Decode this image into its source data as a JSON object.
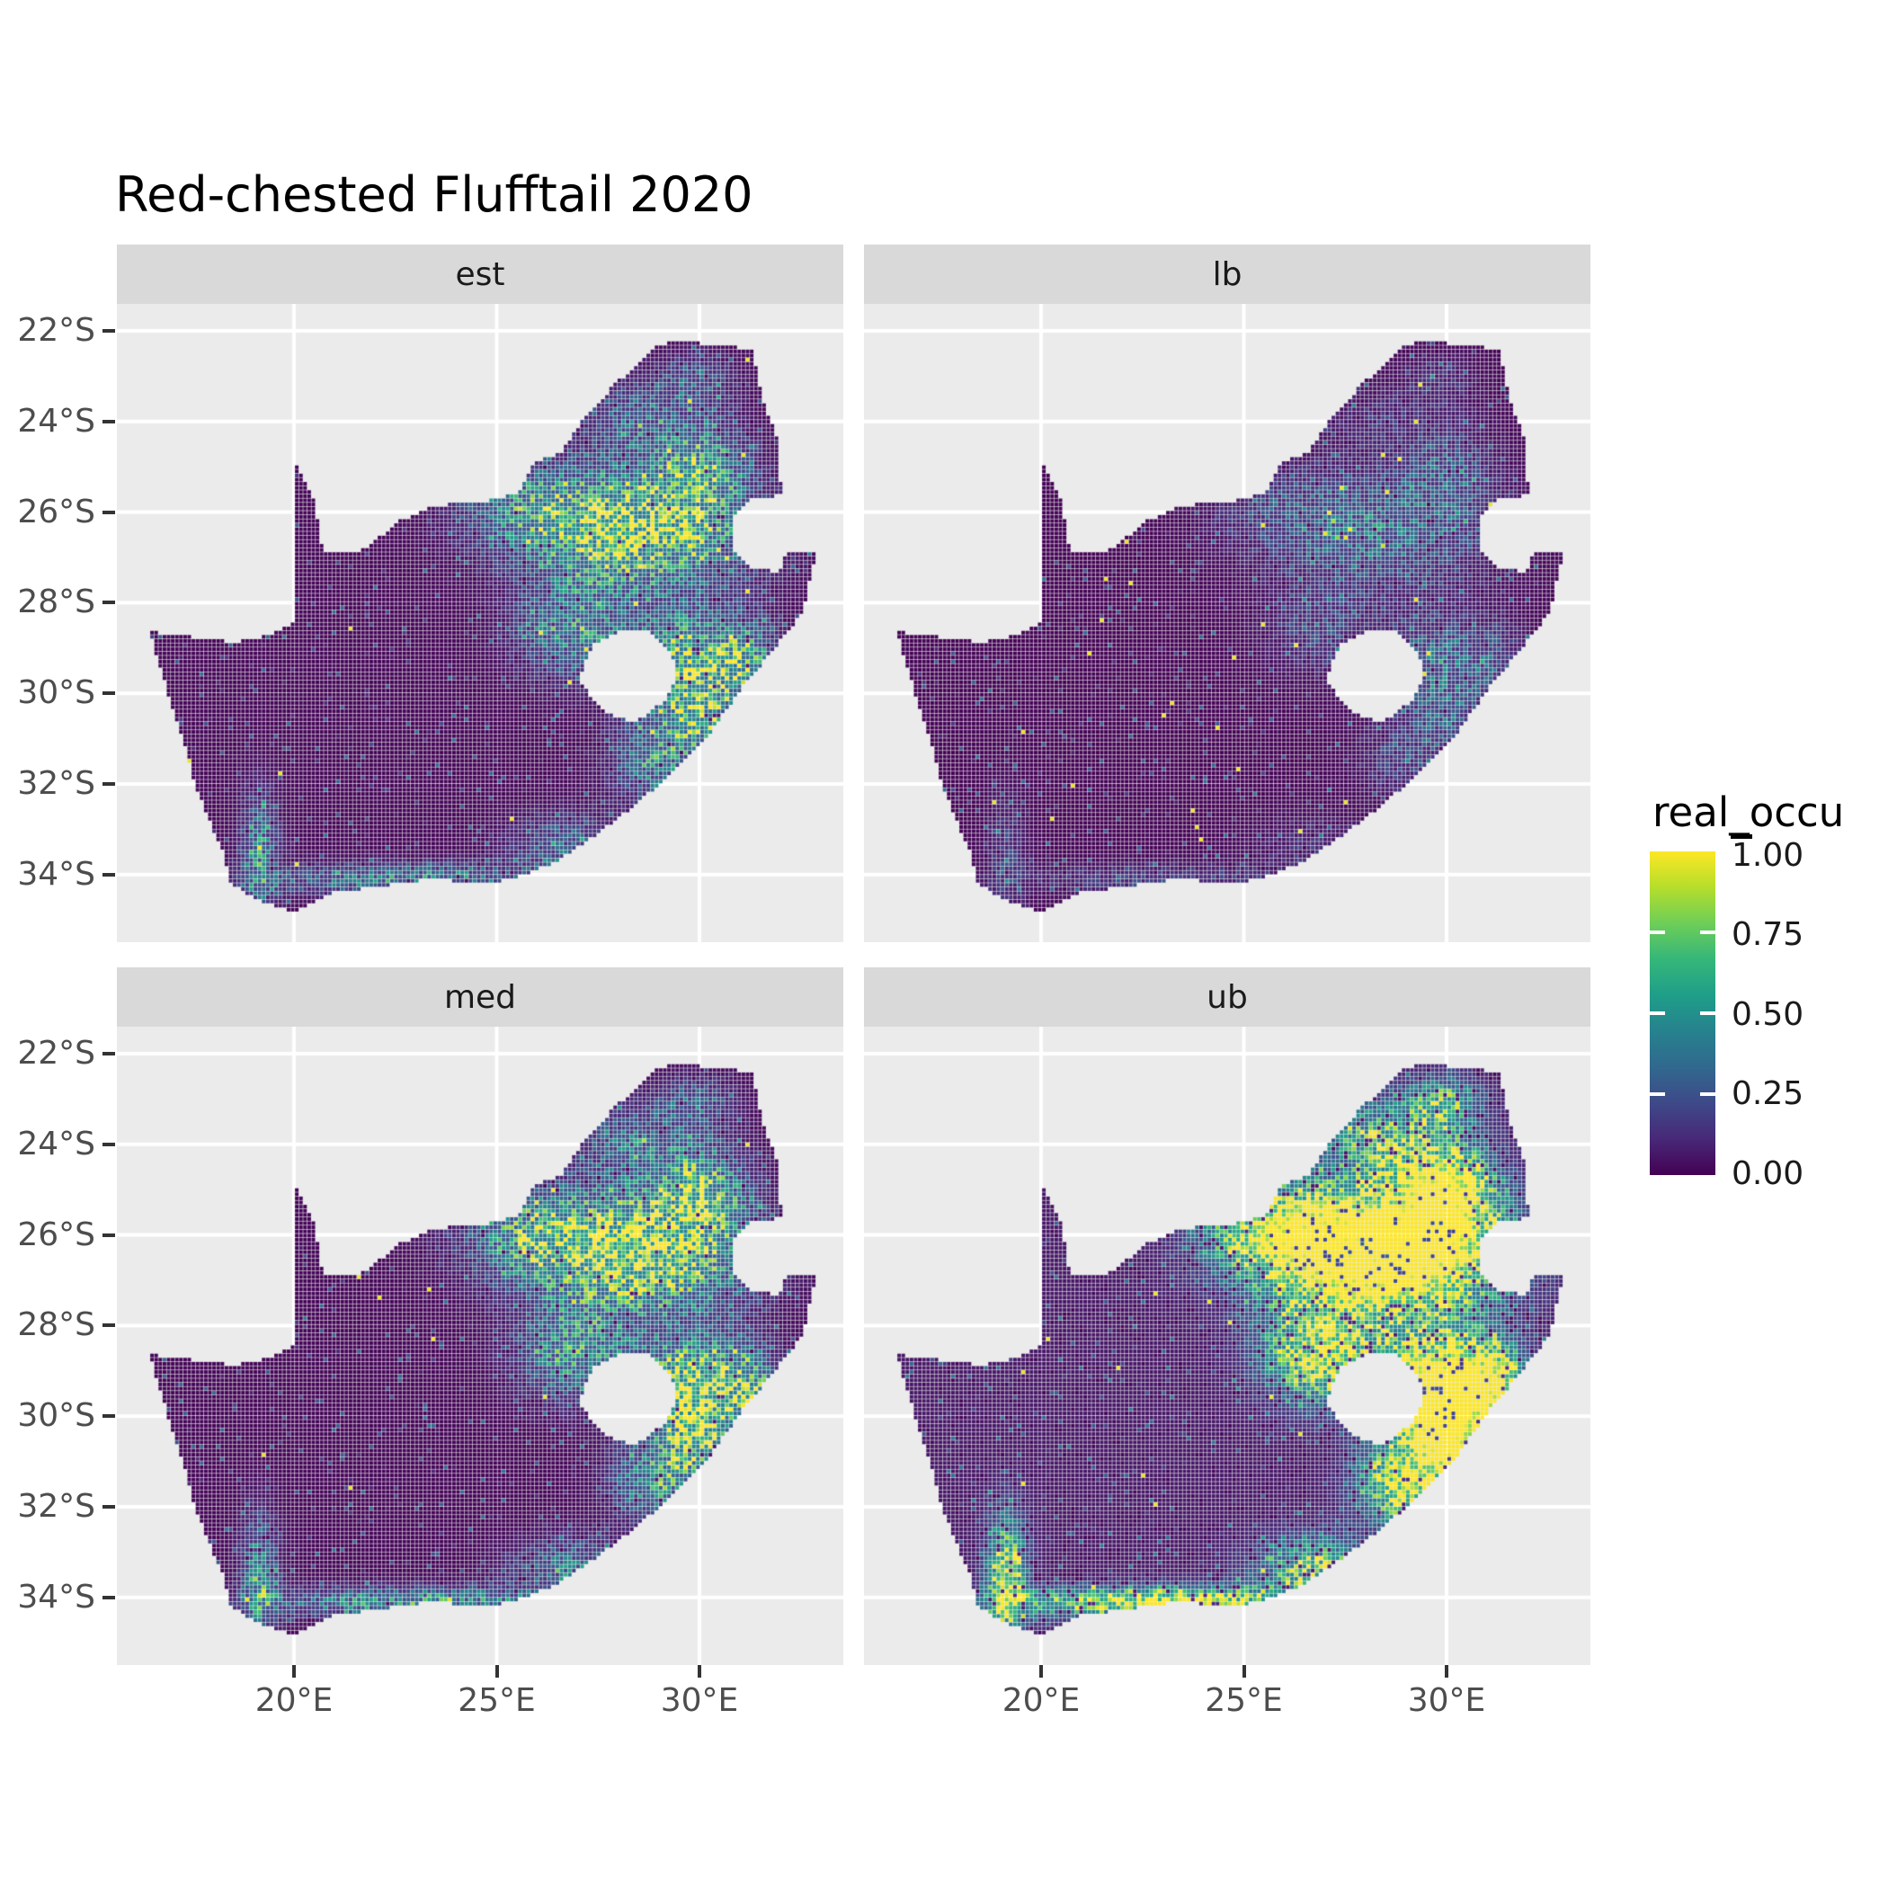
{
  "title": {
    "text": "Red-chested Flufftail 2020"
  },
  "facets": [
    {
      "label": "est",
      "gain": 1.0,
      "base": 0.01,
      "speckle": 0.006,
      "dark": 0.02,
      "texFloor": 0.4,
      "seed": 11
    },
    {
      "label": "lb",
      "gain": 0.4,
      "base": 0.005,
      "speckle": 0.007,
      "dark": 0.02,
      "texFloor": 0.4,
      "seed": 23
    },
    {
      "label": "med",
      "gain": 1.12,
      "base": 0.01,
      "speckle": 0.005,
      "dark": 0.02,
      "texFloor": 0.42,
      "seed": 37
    },
    {
      "label": "ub",
      "gain": 2.0,
      "base": 0.06,
      "speckle": 0.006,
      "dark": 0.08,
      "texFloor": 0.55,
      "seed": 53
    }
  ],
  "axes": {
    "x": {
      "breaks": [
        20,
        25,
        30
      ],
      "tick_labels": [
        "20°E",
        "25°E",
        "30°E"
      ]
    },
    "y": {
      "breaks": [
        -22,
        -24,
        -26,
        -28,
        -30,
        -32,
        -34
      ],
      "tick_labels": [
        "22°S",
        "24°S",
        "26°S",
        "28°S",
        "30°S",
        "32°S",
        "34°S"
      ]
    }
  },
  "legend": {
    "title": "real_occu",
    "labels": [
      "1.00",
      "0.75",
      "0.50",
      "0.25",
      "0.00"
    ],
    "values": [
      1.0,
      0.75,
      0.5,
      0.25,
      0.0
    ]
  },
  "colors": {
    "panel_bg": "#EBEBEB",
    "strip_bg": "#D9D9D9",
    "grid": "#FFFFFF",
    "axis_text": "#4D4D4D",
    "strip_text": "#1A1A1A",
    "title_text": "#000000",
    "tick": "#333333",
    "viridis": [
      "#440154",
      "#482878",
      "#3e4989",
      "#31688e",
      "#26828e",
      "#1f9e89",
      "#35b779",
      "#6ece58",
      "#b5de2b",
      "#fde725"
    ]
  },
  "chart_data": {
    "type": "heatmap",
    "title": "Red-chested Flufftail 2020",
    "facet_labels": [
      "est",
      "lb",
      "med",
      "ub"
    ],
    "x": {
      "breaks": [
        20,
        25,
        30
      ],
      "tick_labels": [
        "20°E",
        "25°E",
        "30°E"
      ],
      "range": [
        15.63,
        33.55
      ]
    },
    "y": {
      "breaks": [
        -22,
        -24,
        -26,
        -28,
        -30,
        -32,
        -34
      ],
      "tick_labels": [
        "22°S",
        "24°S",
        "26°S",
        "28°S",
        "30°S",
        "32°S",
        "34°S"
      ],
      "range": [
        -35.48,
        -21.4
      ]
    },
    "fill": {
      "name": "real_occu",
      "limits": [
        0,
        1
      ],
      "breaks": [
        0,
        0.25,
        0.5,
        0.75,
        1
      ],
      "palette": "viridis"
    },
    "facet_gain": {
      "est": 1.0,
      "lb": 0.4,
      "med": 1.12,
      "ub": 2.0
    },
    "geography": {
      "south_africa": [
        [
          16.45,
          -28.63
        ],
        [
          17.6,
          -28.77
        ],
        [
          18.6,
          -28.87
        ],
        [
          19.4,
          -28.72
        ],
        [
          19.98,
          -28.42
        ],
        [
          19.98,
          -24.77
        ],
        [
          20.45,
          -25.6
        ],
        [
          20.65,
          -26.4
        ],
        [
          20.7,
          -26.88
        ],
        [
          21.65,
          -26.86
        ],
        [
          22.6,
          -26.2
        ],
        [
          23.5,
          -25.85
        ],
        [
          24.6,
          -25.78
        ],
        [
          25.55,
          -25.58
        ],
        [
          25.9,
          -24.95
        ],
        [
          26.6,
          -24.65
        ],
        [
          27.15,
          -23.9
        ],
        [
          27.95,
          -23.15
        ],
        [
          28.95,
          -22.35
        ],
        [
          29.37,
          -22.19
        ],
        [
          30.3,
          -22.3
        ],
        [
          31.3,
          -22.4
        ],
        [
          31.55,
          -23.5
        ],
        [
          31.95,
          -24.4
        ],
        [
          32.02,
          -25.62
        ],
        [
          31.3,
          -25.72
        ],
        [
          30.8,
          -26.1
        ],
        [
          30.82,
          -26.85
        ],
        [
          31.2,
          -27.2
        ],
        [
          31.97,
          -27.32
        ],
        [
          32.13,
          -26.86
        ],
        [
          32.89,
          -26.86
        ],
        [
          32.55,
          -28.2
        ],
        [
          31.9,
          -28.95
        ],
        [
          31.05,
          -29.87
        ],
        [
          30.2,
          -30.95
        ],
        [
          29.35,
          -31.75
        ],
        [
          28.3,
          -32.55
        ],
        [
          27.5,
          -33.1
        ],
        [
          26.4,
          -33.75
        ],
        [
          25.65,
          -34.02
        ],
        [
          24.8,
          -34.2
        ],
        [
          23.4,
          -34.1
        ],
        [
          22.2,
          -34.25
        ],
        [
          21.0,
          -34.4
        ],
        [
          20.0,
          -34.82
        ],
        [
          19.1,
          -34.55
        ],
        [
          18.45,
          -34.2
        ],
        [
          18.25,
          -33.5
        ],
        [
          17.9,
          -32.8
        ],
        [
          17.55,
          -32.0
        ],
        [
          17.25,
          -31.0
        ],
        [
          16.75,
          -29.6
        ]
      ],
      "lesotho_hole": [
        [
          27.0,
          -29.7
        ],
        [
          27.4,
          -28.9
        ],
        [
          28.1,
          -28.6
        ],
        [
          28.7,
          -28.62
        ],
        [
          29.3,
          -29.1
        ],
        [
          29.45,
          -29.6
        ],
        [
          29.2,
          -30.12
        ],
        [
          28.4,
          -30.66
        ],
        [
          27.75,
          -30.46
        ],
        [
          27.35,
          -30.1
        ]
      ]
    },
    "hotspots": [
      {
        "lon": 28.4,
        "lat": -26.4,
        "rx": 2.5,
        "ry": 1.25,
        "amp": 1.0
      },
      {
        "lon": 30.0,
        "lat": -25.0,
        "rx": 1.1,
        "ry": 1.0,
        "amp": 0.6
      },
      {
        "lon": 29.8,
        "lat": -29.5,
        "rx": 1.3,
        "ry": 1.15,
        "amp": 0.95
      },
      {
        "lon": 31.2,
        "lat": -29.3,
        "rx": 0.7,
        "ry": 0.9,
        "amp": 0.45
      },
      {
        "lon": 26.9,
        "lat": -28.6,
        "rx": 1.3,
        "ry": 1.0,
        "amp": 0.5
      },
      {
        "lon": 25.8,
        "lat": -25.9,
        "rx": 1.6,
        "ry": 0.9,
        "amp": 0.4
      },
      {
        "lon": 28.3,
        "lat": -23.9,
        "rx": 1.3,
        "ry": 0.8,
        "amp": 0.3
      },
      {
        "lon": 29.9,
        "lat": -23.1,
        "rx": 0.9,
        "ry": 0.55,
        "amp": 0.3
      },
      {
        "lon": 23.0,
        "lat": -34.1,
        "rx": 3.6,
        "ry": 0.33,
        "amp": 0.5
      },
      {
        "lon": 19.15,
        "lat": -33.6,
        "rx": 0.45,
        "ry": 1.3,
        "amp": 0.5
      },
      {
        "lon": 26.8,
        "lat": -33.4,
        "rx": 1.4,
        "ry": 0.7,
        "amp": 0.35
      },
      {
        "lon": 28.9,
        "lat": -31.5,
        "rx": 1.0,
        "ry": 0.8,
        "amp": 0.5
      },
      {
        "lon": 30.0,
        "lat": -30.7,
        "rx": 0.7,
        "ry": 0.6,
        "amp": 0.5
      }
    ]
  }
}
